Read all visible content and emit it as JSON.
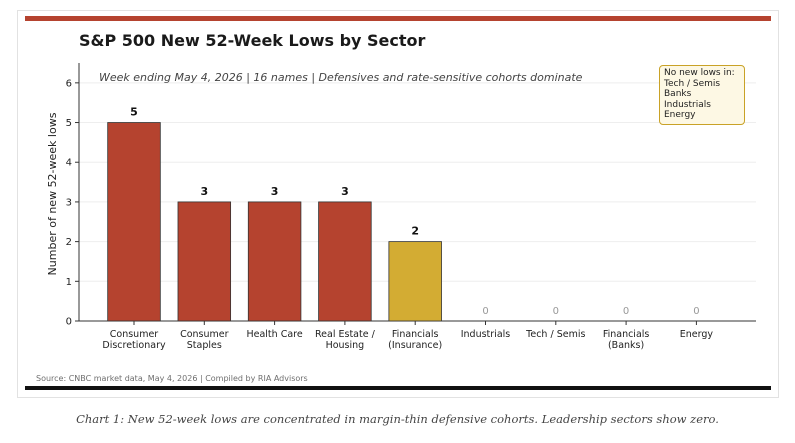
{
  "header": {
    "title": "S&P 500 New 52-Week Lows by Sector",
    "source": "Source: CNBC market data, May 4, 2026  |  Compiled by RIA Advisors",
    "caption": "Chart 1: New 52-week lows are concentrated in margin-thin defensive cohorts. Leadership sectors show zero."
  },
  "colors": {
    "accent": "#b5432f",
    "highlight": "#d3ac33",
    "zero_label": "#999999"
  },
  "chart_data": {
    "type": "bar",
    "title": "S&P 500 New 52-Week Lows by Sector",
    "subtitle": "Week ending May 4, 2026  |  16 names  |  Defensives and rate-sensitive cohorts dominate",
    "ylabel": "Number of new 52-week lows",
    "ylim": [
      0,
      6.5
    ],
    "yticks": [
      0,
      1,
      2,
      3,
      4,
      5,
      6
    ],
    "grid": true,
    "categories": [
      [
        "Consumer",
        "Discretionary"
      ],
      [
        "Consumer",
        "Staples"
      ],
      [
        "Health Care"
      ],
      [
        "Real Estate /",
        "Housing"
      ],
      [
        "Financials",
        "(Insurance)"
      ],
      [
        "Industrials"
      ],
      [
        "Tech / Semis"
      ],
      [
        "Financials",
        "(Banks)"
      ],
      [
        "Energy"
      ]
    ],
    "values": [
      5,
      3,
      3,
      3,
      2,
      0,
      0,
      0,
      0
    ],
    "bar_colors": [
      "#b5432f",
      "#b5432f",
      "#b5432f",
      "#b5432f",
      "#d3ac33",
      "#b5432f",
      "#b5432f",
      "#b5432f",
      "#b5432f"
    ],
    "annotation": {
      "title": "No new lows in:",
      "items": [
        "Tech / Semis",
        "Banks",
        "Industrials",
        "Energy"
      ]
    }
  }
}
